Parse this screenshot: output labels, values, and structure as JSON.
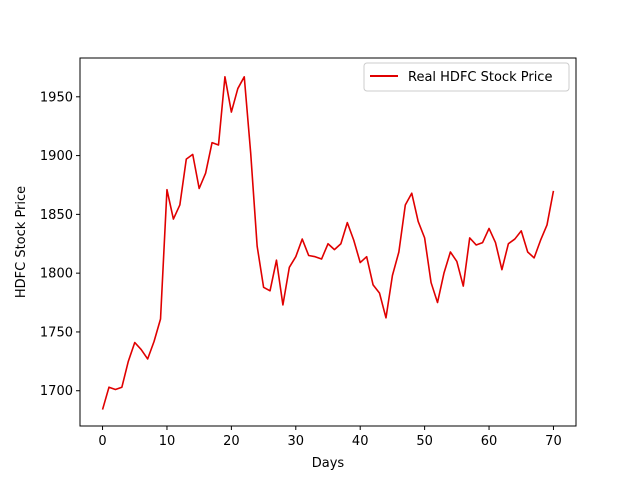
{
  "chart_data": {
    "type": "line",
    "title": "",
    "xlabel": "Days",
    "ylabel": "HDFC Stock Price",
    "xlim": [
      -3.5,
      73.5
    ],
    "ylim": [
      1670,
      1983
    ],
    "x_ticks": [
      0,
      10,
      20,
      30,
      40,
      50,
      60,
      70
    ],
    "y_ticks": [
      1700,
      1750,
      1800,
      1850,
      1900,
      1950
    ],
    "grid": false,
    "legend_position": "top-right",
    "series": [
      {
        "name": "Real HDFC Stock Price",
        "color": "#e00000",
        "x": [
          0,
          1,
          2,
          3,
          4,
          5,
          6,
          7,
          8,
          9,
          10,
          11,
          12,
          13,
          14,
          15,
          16,
          17,
          18,
          19,
          20,
          21,
          22,
          23,
          24,
          25,
          26,
          27,
          28,
          29,
          30,
          31,
          32,
          33,
          34,
          35,
          36,
          37,
          38,
          39,
          40,
          41,
          42,
          43,
          44,
          45,
          46,
          47,
          48,
          49,
          50,
          51,
          52,
          53,
          54,
          55,
          56,
          57,
          58,
          59,
          60,
          61,
          62,
          63,
          64,
          65,
          66,
          67,
          68,
          69,
          70
        ],
        "values": [
          1684,
          1703,
          1701,
          1703,
          1725,
          1741,
          1735,
          1727,
          1742,
          1761,
          1871,
          1846,
          1858,
          1897,
          1901,
          1872,
          1885,
          1911,
          1909,
          1967,
          1937,
          1957,
          1967,
          1902,
          1823,
          1788,
          1785,
          1811,
          1773,
          1805,
          1814,
          1829,
          1815,
          1814,
          1812,
          1825,
          1820,
          1825,
          1843,
          1828,
          1809,
          1814,
          1790,
          1783,
          1762,
          1798,
          1818,
          1858,
          1868,
          1844,
          1830,
          1792,
          1775,
          1800,
          1818,
          1810,
          1789,
          1830,
          1824,
          1826,
          1838,
          1826,
          1803,
          1825,
          1829,
          1836,
          1818,
          1813,
          1828,
          1841,
          1870
        ]
      }
    ]
  }
}
